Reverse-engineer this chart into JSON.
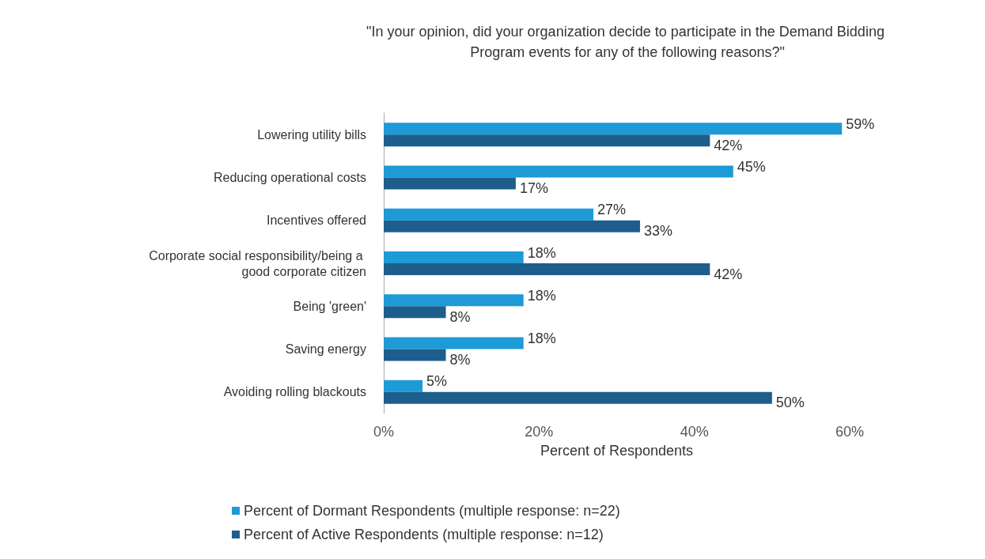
{
  "chart_data": {
    "type": "bar",
    "orientation": "horizontal",
    "title": "\"In your opinion, did your organization decide to participate in the Demand Bidding Program events for any of the following reasons?\"",
    "xlabel": "Percent of Respondents",
    "categories": [
      "Lowering utility bills",
      "Reducing operational costs",
      "Incentives offered",
      "Corporate social responsibility/being a good corporate citizen",
      "Being 'green'",
      "Saving energy",
      "Avoiding rolling blackouts"
    ],
    "series": [
      {
        "name": "Percent of Dormant Respondents (multiple response: n=22)",
        "color": "#1e9ad6",
        "values": [
          59,
          45,
          27,
          18,
          18,
          18,
          5
        ],
        "value_labels": [
          "59%",
          "45%",
          "27%",
          "18%",
          "18%",
          "18%",
          "5%"
        ]
      },
      {
        "name": "Percent of Active Respondents (multiple response: n=12)",
        "color": "#1d5e8c",
        "values": [
          42,
          17,
          33,
          42,
          8,
          8,
          50
        ],
        "value_labels": [
          "42%",
          "17%",
          "33%",
          "42%",
          "8%",
          "8%",
          "50%"
        ]
      }
    ],
    "xlim": [
      0,
      60
    ],
    "xticks": [
      {
        "value": 0,
        "label": "0%"
      },
      {
        "value": 20,
        "label": "20%"
      },
      {
        "value": 40,
        "label": "40%"
      },
      {
        "value": 60,
        "label": "60%"
      }
    ],
    "grid": false,
    "legend": "bottom"
  }
}
